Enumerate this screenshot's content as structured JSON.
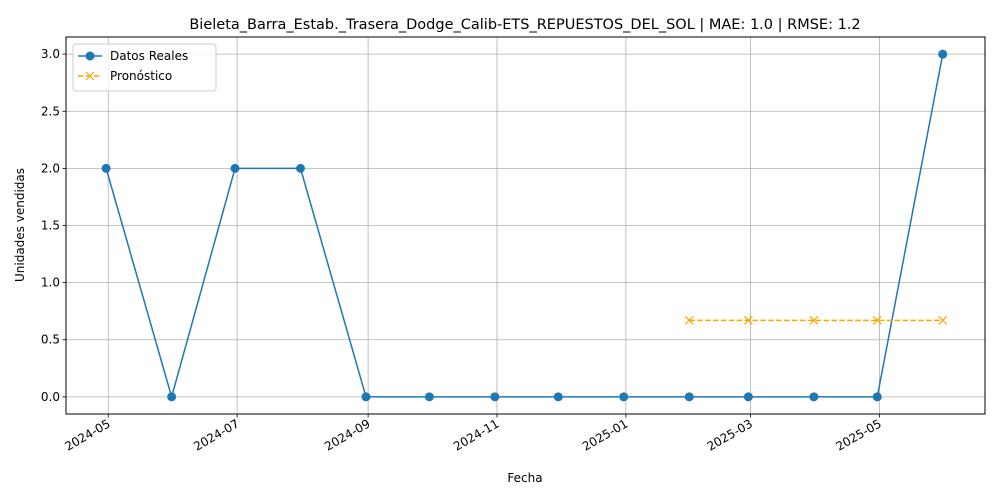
{
  "chart_data": {
    "type": "line",
    "title": "Bieleta_Barra_Estab._Trasera_Dodge_Calib-ETS_REPUESTOS_DEL_SOL | MAE: 1.0 | RMSE: 1.2",
    "xlabel": "Fecha",
    "ylabel": "Unidades vendidas",
    "ylim": [
      -0.15,
      3.15
    ],
    "xlim": [
      "2024-04-11",
      "2025-06-20"
    ],
    "grid": true,
    "legend_position": "top-left",
    "x_ticks": [
      "2024-05",
      "2024-07",
      "2024-09",
      "2024-11",
      "2025-01",
      "2025-03",
      "2025-05"
    ],
    "y_ticks": [
      "0.0",
      "0.5",
      "1.0",
      "1.5",
      "2.0",
      "2.5",
      "3.0"
    ],
    "series": [
      {
        "name": "Datos Reales",
        "color": "#1f77b4",
        "marker": "circle",
        "linestyle": "solid",
        "x": [
          "2024-04-30",
          "2024-05-31",
          "2024-06-30",
          "2024-07-31",
          "2024-08-31",
          "2024-09-30",
          "2024-10-31",
          "2024-11-30",
          "2024-12-31",
          "2025-01-31",
          "2025-02-28",
          "2025-03-31",
          "2025-04-30",
          "2025-05-31"
        ],
        "values": [
          2,
          0,
          2,
          2,
          0,
          0,
          0,
          0,
          0,
          0,
          0,
          0,
          0,
          3
        ]
      },
      {
        "name": "Pronóstico",
        "color": "#ffa500",
        "marker": "x",
        "linestyle": "dashed",
        "x": [
          "2025-01-31",
          "2025-02-28",
          "2025-03-31",
          "2025-04-30",
          "2025-05-31"
        ],
        "values": [
          0.67,
          0.67,
          0.67,
          0.67,
          0.67
        ]
      }
    ]
  }
}
